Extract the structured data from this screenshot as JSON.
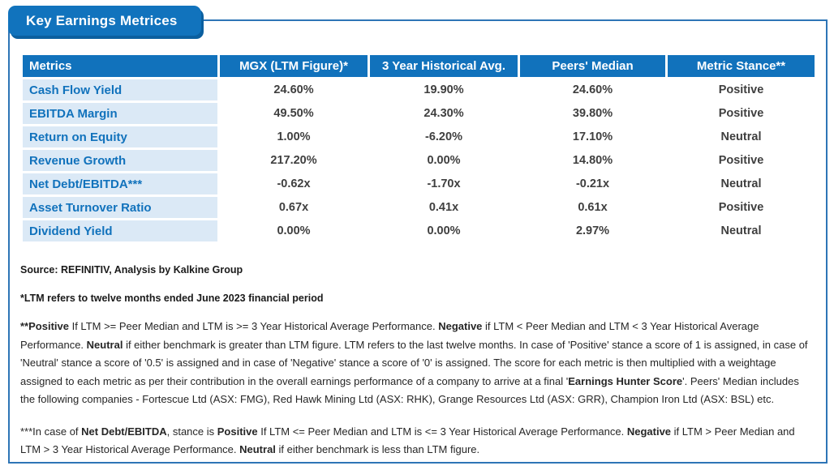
{
  "title": "Key Earnings Metrices",
  "colors": {
    "frame_border": "#2e75b6",
    "title_bg": "#1173bd",
    "title_shadow": "#0b5f9f",
    "header_bg": "#1172bc",
    "metric_bg": "#dbe9f6",
    "metric_text": "#1172bc",
    "value_text": "#3f3f3f",
    "g1": "#5cb97a",
    "g2": "#66c07e",
    "g3": "#8ccd9b",
    "g4": "#a2d6ac",
    "g5": "#cde9d6",
    "g6": "#eff7f2",
    "plain": "#fdfefd",
    "pos": "#d5e9c4",
    "neu": "#fbfbc6"
  },
  "table": {
    "columns": [
      "Metrics",
      "MGX (LTM Figure)*",
      "3 Year Historical Avg.",
      "Peers' Median",
      "Metric Stance**"
    ],
    "rows": [
      {
        "metric": "Cash Flow Yield",
        "mgx": {
          "text": "24.60%",
          "color": "g1"
        },
        "hist": {
          "text": "19.90%",
          "color": "plain"
        },
        "peers": {
          "text": "24.60%",
          "color": "g1"
        },
        "stance": {
          "text": "Positive",
          "color": "pos"
        }
      },
      {
        "metric": "EBITDA Margin",
        "mgx": {
          "text": "49.50%",
          "color": "g1"
        },
        "hist": {
          "text": "24.30%",
          "color": "plain"
        },
        "peers": {
          "text": "39.80%",
          "color": "g4"
        },
        "stance": {
          "text": "Positive",
          "color": "pos"
        }
      },
      {
        "metric": "Return on Equity",
        "mgx": {
          "text": "1.00%",
          "color": "g5"
        },
        "hist": {
          "text": "-6.20%",
          "color": "plain"
        },
        "peers": {
          "text": "17.10%",
          "color": "g2"
        },
        "stance": {
          "text": "Neutral",
          "color": "neu"
        }
      },
      {
        "metric": "Revenue Growth",
        "mgx": {
          "text": "217.20%",
          "color": "g1"
        },
        "hist": {
          "text": "0.00%",
          "color": "plain"
        },
        "peers": {
          "text": "14.80%",
          "color": "g6"
        },
        "stance": {
          "text": "Positive",
          "color": "pos"
        }
      },
      {
        "metric": "Net Debt/EBITDA***",
        "mgx": {
          "text": "-0.62x",
          "color": "g5"
        },
        "hist": {
          "text": "-1.70x",
          "color": "g1"
        },
        "peers": {
          "text": "-0.21x",
          "color": "plain"
        },
        "stance": {
          "text": "Neutral",
          "color": "neu"
        }
      },
      {
        "metric": "Asset Turnover Ratio",
        "mgx": {
          "text": "0.67x",
          "color": "g1"
        },
        "hist": {
          "text": "0.41x",
          "color": "plain"
        },
        "peers": {
          "text": "0.61x",
          "color": "g3"
        },
        "stance": {
          "text": "Positive",
          "color": "pos"
        }
      },
      {
        "metric": "Dividend Yield",
        "mgx": {
          "text": "0.00%",
          "color": "plain"
        },
        "hist": {
          "text": "0.00%",
          "color": "plain"
        },
        "peers": {
          "text": "2.97%",
          "color": "g2"
        },
        "stance": {
          "text": "Neutral",
          "color": "neu"
        }
      }
    ]
  },
  "footnotes": {
    "source": "Source: REFINITIV, Analysis by Kalkine Group",
    "ltm_note": "*LTM refers to twelve months ended June 2023 financial period",
    "stance_note": [
      {
        "t": "**Positive",
        "b": true
      },
      {
        "t": " If LTM >= Peer Median and LTM is >= 3 Year Historical Average Performance. ",
        "b": false
      },
      {
        "t": "Negative",
        "b": true
      },
      {
        "t": " if LTM < Peer Median and LTM < 3 Year Historical Average Performance. ",
        "b": false
      },
      {
        "t": "Neutral",
        "b": true
      },
      {
        "t": " if either benchmark is greater than LTM figure. LTM refers to the last twelve months. In case of 'Positive' stance a score of 1 is assigned, in case of 'Neutral' stance a score of '0.5' is assigned and in case of 'Negative' stance a score of '0' is assigned. The score for each metric is then multiplied with a weightage assigned to each metric as per their contribution in the overall earnings performance of a company to arrive at a final '",
        "b": false
      },
      {
        "t": "Earnings Hunter Score",
        "b": true
      },
      {
        "t": "'. Peers' Median includes the following companies - Fortescue Ltd (ASX: FMG), Red Hawk Mining Ltd (ASX: RHK), Grange Resources Ltd (ASX: GRR), Champion Iron Ltd (ASX: BSL)  etc.",
        "b": false
      }
    ],
    "netdebt_note": [
      {
        "t": "***In case of ",
        "b": false
      },
      {
        "t": "Net Debt/EBITDA",
        "b": true
      },
      {
        "t": ", stance is ",
        "b": false
      },
      {
        "t": "Positive",
        "b": true
      },
      {
        "t": " If LTM <= Peer Median and LTM is <= 3 Year Historical Average Performance. ",
        "b": false
      },
      {
        "t": "Negative",
        "b": true
      },
      {
        "t": " if LTM > Peer Median and LTM > 3 Year Historical Average Performance. ",
        "b": false
      },
      {
        "t": "Neutral",
        "b": true
      },
      {
        "t": " if either benchmark is less than LTM figure.",
        "b": false
      }
    ]
  }
}
